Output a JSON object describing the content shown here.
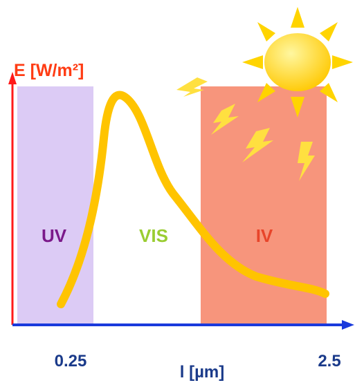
{
  "axes": {
    "y_label": "E [W/m²]",
    "x_label": "l [µm]",
    "x_start": "0.25",
    "x_end": "2.5"
  },
  "regions": [
    {
      "label": "UV"
    },
    {
      "label": "VIS"
    },
    {
      "label": "IV"
    }
  ]
}
